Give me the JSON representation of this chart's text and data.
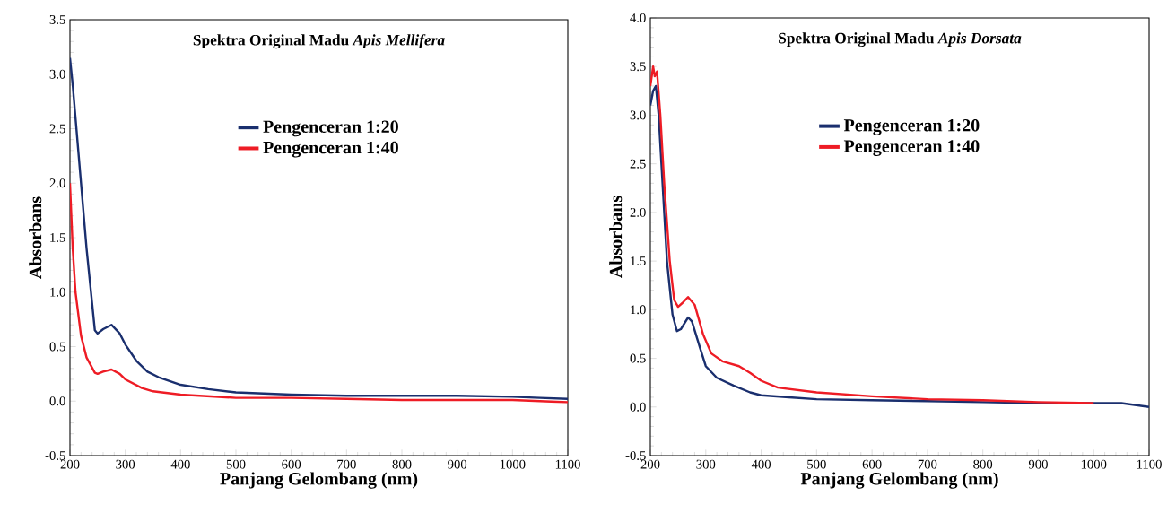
{
  "chart_data": [
    {
      "type": "line",
      "title": "Spektra Original Madu *Apis Mellifera*",
      "xlabel": "Panjang Gelombang (nm)",
      "ylabel": "Absorbans",
      "xlim": [
        200,
        1100
      ],
      "ylim": [
        -0.5,
        3.5
      ],
      "xticks": [
        200,
        300,
        400,
        500,
        600,
        700,
        800,
        900,
        1000,
        1100
      ],
      "yticks": [
        {
          "value": -0.5,
          "label": "-0.5"
        },
        {
          "value": 0,
          "label": "0.0"
        },
        {
          "value": 0.5,
          "label": "0.5"
        },
        {
          "value": 1,
          "label": "1.0"
        },
        {
          "value": 1.5,
          "label": "1.5"
        },
        {
          "value": 2,
          "label": "2.0"
        },
        {
          "value": 2.5,
          "label": "2.5"
        },
        {
          "value": 3,
          "label": "3.0"
        },
        {
          "value": 3.5,
          "label": "3.5"
        }
      ],
      "legend": "top",
      "marker": "none",
      "series": [
        {
          "name": "Pengenceran 1:20",
          "color": "#1a2f6e",
          "x": [
            200,
            205,
            210,
            220,
            230,
            240,
            245,
            250,
            260,
            275,
            290,
            300,
            320,
            340,
            360,
            400,
            450,
            500,
            600,
            700,
            800,
            900,
            1000,
            1050,
            1100
          ],
          "values": [
            3.15,
            2.9,
            2.6,
            2.0,
            1.4,
            0.9,
            0.65,
            0.62,
            0.66,
            0.7,
            0.62,
            0.52,
            0.37,
            0.27,
            0.22,
            0.15,
            0.11,
            0.08,
            0.06,
            0.05,
            0.05,
            0.05,
            0.04,
            0.03,
            0.02
          ]
        },
        {
          "name": "Pengenceran 1:40",
          "color": "#ee1c25",
          "x": [
            200,
            205,
            210,
            220,
            230,
            245,
            250,
            260,
            275,
            290,
            300,
            330,
            350,
            400,
            500,
            600,
            700,
            800,
            900,
            1000,
            1050,
            1100
          ],
          "values": [
            2.0,
            1.4,
            1.0,
            0.6,
            0.4,
            0.26,
            0.25,
            0.27,
            0.29,
            0.25,
            0.2,
            0.12,
            0.09,
            0.06,
            0.03,
            0.03,
            0.02,
            0.01,
            0.01,
            0.01,
            0.0,
            -0.01
          ]
        }
      ]
    },
    {
      "type": "line",
      "title": "Spektra Original Madu *Apis Dorsata*",
      "xlabel": "Panjang Gelombang (nm)",
      "ylabel": "Absorbans",
      "xlim": [
        200,
        1100
      ],
      "ylim": [
        -0.5,
        4.0
      ],
      "xticks": [
        200,
        300,
        400,
        500,
        600,
        700,
        800,
        900,
        1000,
        1100
      ],
      "yticks": [
        {
          "value": -0.5,
          "label": "-0.5"
        },
        {
          "value": 0,
          "label": "0.0"
        },
        {
          "value": 0.5,
          "label": "0.5"
        },
        {
          "value": 1,
          "label": "1.0"
        },
        {
          "value": 1.5,
          "label": "1.5"
        },
        {
          "value": 2,
          "label": "2.0"
        },
        {
          "value": 2.5,
          "label": "2.5"
        },
        {
          "value": 3,
          "label": "3.0"
        },
        {
          "value": 3.5,
          "label": "3.5"
        },
        {
          "value": 4,
          "label": "4.0"
        }
      ],
      "legend": "top",
      "marker": "none",
      "series": [
        {
          "name": "Pengenceran 1:20",
          "color": "#1a2f6e",
          "x": [
            200,
            205,
            210,
            215,
            220,
            230,
            240,
            248,
            255,
            268,
            275,
            290,
            300,
            320,
            350,
            380,
            400,
            450,
            500,
            600,
            700,
            800,
            900,
            1000,
            1050,
            1100
          ],
          "values": [
            3.1,
            3.25,
            3.3,
            3.0,
            2.5,
            1.5,
            0.95,
            0.78,
            0.8,
            0.92,
            0.88,
            0.6,
            0.42,
            0.3,
            0.22,
            0.15,
            0.12,
            0.1,
            0.08,
            0.07,
            0.06,
            0.05,
            0.04,
            0.04,
            0.04,
            0.0
          ]
        },
        {
          "name": "Pengenceran 1:40",
          "color": "#ee1c25",
          "x": [
            200,
            205,
            208,
            212,
            218,
            225,
            235,
            243,
            250,
            258,
            268,
            280,
            295,
            310,
            330,
            360,
            380,
            400,
            430,
            500,
            600,
            700,
            800,
            900,
            1000
          ],
          "values": [
            3.3,
            3.5,
            3.4,
            3.45,
            3.0,
            2.3,
            1.5,
            1.1,
            1.03,
            1.07,
            1.13,
            1.05,
            0.75,
            0.55,
            0.47,
            0.42,
            0.35,
            0.27,
            0.2,
            0.15,
            0.11,
            0.08,
            0.07,
            0.05,
            0.04
          ]
        }
      ]
    }
  ]
}
